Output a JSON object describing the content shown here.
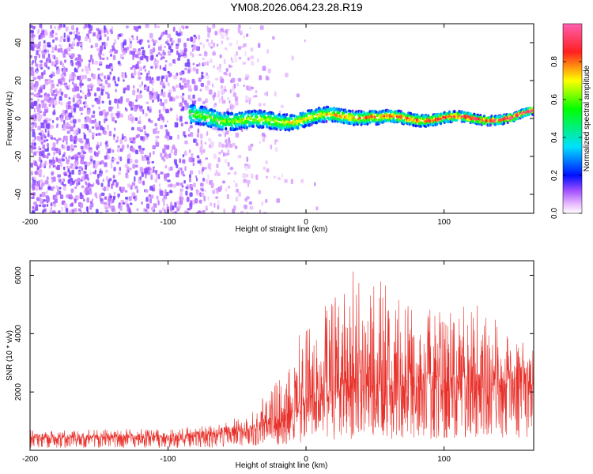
{
  "figure": {
    "title": "YM08.2026.064.23.28.R19"
  },
  "chart_data": [
    {
      "type": "heatmap",
      "xlabel": "Height of straight line (km)",
      "ylabel": "Frequency (Hz)",
      "xlim": [
        -200,
        165
      ],
      "ylim": [
        -50,
        50
      ],
      "xticks": [
        -200,
        -100,
        0,
        100
      ],
      "yticks": [
        -40,
        -20,
        0,
        20,
        40
      ],
      "grid": false,
      "colorbar": {
        "label": "Normalized spectral amplitude",
        "range": [
          0,
          1
        ],
        "ticks": [
          0.0,
          0.2,
          0.4,
          0.6,
          0.8
        ],
        "tick_labels": [
          "0.0",
          "0.2",
          "0.4",
          "0.6",
          "0.8"
        ],
        "colormap": "rainbow (white→magenta→blue→cyan→green→yellow→red→pink)"
      },
      "features": {
        "noise_region_x": [
          -200,
          -20
        ],
        "signal_band_start_x": -85,
        "signal_center_freq_hz": 0,
        "band_half_width_hz_start": 5,
        "band_half_width_hz_end": 2
      }
    },
    {
      "type": "line",
      "xlabel": "Height of straight line (km)",
      "ylabel": "SNR (10 * v/v)",
      "xlim": [
        -200,
        165
      ],
      "ylim": [
        0,
        6500
      ],
      "xticks": [
        -200,
        -100,
        0,
        100
      ],
      "yticks": [
        2000,
        4000,
        6000
      ],
      "grid": false,
      "series": [
        {
          "color": "#e8302a",
          "envelope": {
            "x": [
              -200,
              -100,
              -60,
              -40,
              -20,
              0,
              20,
              35,
              40,
              55,
              70,
              100,
              120,
              140,
              165
            ],
            "mean": [
              400,
              400,
              500,
              650,
              900,
              1300,
              1700,
              2000,
              2100,
              2000,
              1900,
              2000,
              2150,
              2100,
              2200
            ],
            "peak": [
              700,
              750,
              900,
              1400,
              2400,
              4600,
              5200,
              6300,
              6200,
              5800,
              5000,
              4800,
              5100,
              4600,
              3500
            ]
          }
        }
      ]
    }
  ]
}
